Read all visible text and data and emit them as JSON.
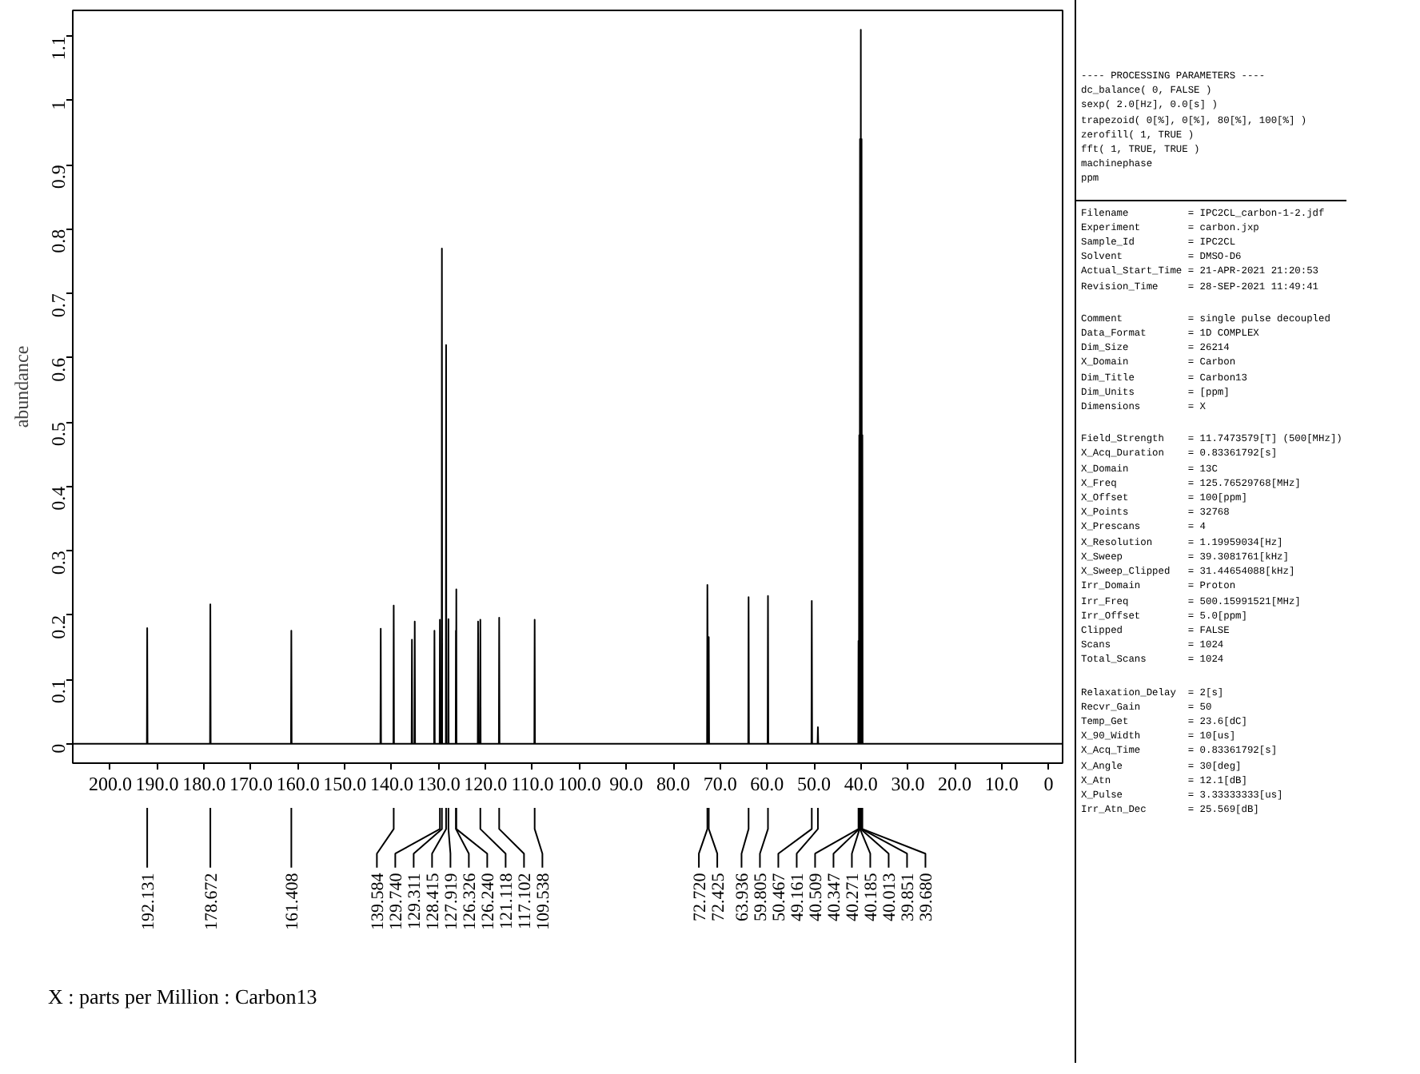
{
  "chart_data": {
    "type": "line",
    "ylabel": "abundance",
    "xlim": [
      208,
      -3
    ],
    "ylim": [
      -0.03,
      1.14
    ],
    "xticks": [
      {
        "value": 200,
        "label": "200.0"
      },
      {
        "value": 190,
        "label": "190.0"
      },
      {
        "value": 180,
        "label": "180.0"
      },
      {
        "value": 170,
        "label": "170.0"
      },
      {
        "value": 160,
        "label": "160.0"
      },
      {
        "value": 150,
        "label": "150.0"
      },
      {
        "value": 140,
        "label": "140.0"
      },
      {
        "value": 130,
        "label": "130.0"
      },
      {
        "value": 120,
        "label": "120.0"
      },
      {
        "value": 110,
        "label": "110.0"
      },
      {
        "value": 100,
        "label": "100.0"
      },
      {
        "value": 90,
        "label": "90.0"
      },
      {
        "value": 80,
        "label": "80.0"
      },
      {
        "value": 70,
        "label": "70.0"
      },
      {
        "value": 60,
        "label": "60.0"
      },
      {
        "value": 50,
        "label": "50.0"
      },
      {
        "value": 40,
        "label": "40.0"
      },
      {
        "value": 30,
        "label": "30.0"
      },
      {
        "value": 20,
        "label": "20.0"
      },
      {
        "value": 10,
        "label": "10.0"
      },
      0
    ],
    "yticks": [
      0,
      0.1,
      0.2,
      0.3,
      0.4,
      0.5,
      0.6,
      0.7,
      0.8,
      0.9,
      1.0,
      1.1
    ],
    "grid": false,
    "series": [
      {
        "color": "#000000",
        "x": [
          208,
          192.2,
          192.131,
          192.06,
          178.74,
          178.672,
          178.6,
          161.48,
          161.408,
          161.34,
          142.42,
          142.35,
          142.28,
          139.65,
          139.584,
          139.52,
          135.77,
          135.7,
          135.63,
          135.17,
          135.1,
          135.03,
          130.97,
          130.9,
          130.83,
          129.8,
          129.74,
          129.68,
          129.37,
          129.311,
          129.25,
          128.47,
          128.415,
          128.36,
          127.97,
          127.919,
          127.87,
          126.37,
          126.326,
          126.29,
          126.24,
          126.2,
          121.67,
          121.6,
          121.53,
          121.19,
          121.118,
          121.05,
          117.17,
          117.102,
          117.03,
          109.61,
          109.538,
          109.47,
          72.79,
          72.72,
          72.57,
          72.425,
          72.35,
          64.01,
          63.936,
          63.86,
          59.88,
          59.805,
          59.73,
          50.54,
          50.467,
          50.39,
          49.23,
          49.161,
          49.09,
          40.56,
          40.509,
          40.43,
          40.347,
          40.27,
          40.185,
          40.1,
          40.013,
          39.93,
          39.851,
          39.77,
          39.68,
          39.62,
          -3
        ],
        "values": [
          0,
          0,
          0.18,
          0,
          0,
          0.217,
          0,
          0,
          0.176,
          0,
          0,
          0.179,
          0,
          0,
          0.215,
          0,
          0,
          0.162,
          0,
          0,
          0.19,
          0,
          0,
          0.176,
          0,
          0,
          0.193,
          0,
          0,
          0.77,
          0,
          0,
          0.62,
          0,
          0,
          0.194,
          0,
          0,
          0.176,
          0,
          0.24,
          0,
          0,
          0.19,
          0,
          0,
          0.193,
          0,
          0,
          0.196,
          0,
          0,
          0.193,
          0,
          0,
          0.247,
          0,
          0.166,
          0,
          0,
          0.228,
          0,
          0,
          0.23,
          0,
          0,
          0.222,
          0,
          0,
          0.026,
          0,
          0,
          0.16,
          0,
          0.48,
          0,
          0.94,
          0,
          1.11,
          0,
          0.94,
          0,
          0.48,
          0,
          0
        ]
      }
    ],
    "annotations": [
      {
        "text": "192.131",
        "x": 192.131
      },
      {
        "text": "178.672",
        "x": 178.672
      },
      {
        "text": "161.408",
        "x": 161.408
      },
      {
        "text": "139.584",
        "x": 139.584
      },
      {
        "text": "129.740",
        "x": 129.74
      },
      {
        "text": "129.311",
        "x": 129.311
      },
      {
        "text": "128.415",
        "x": 128.415
      },
      {
        "text": "127.919",
        "x": 127.919
      },
      {
        "text": "126.326",
        "x": 126.326
      },
      {
        "text": "126.240",
        "x": 126.24
      },
      {
        "text": "121.118",
        "x": 121.118
      },
      {
        "text": "117.102",
        "x": 117.102
      },
      {
        "text": "109.538",
        "x": 109.538
      },
      {
        "text": "72.720",
        "x": 72.72
      },
      {
        "text": "72.425",
        "x": 72.425
      },
      {
        "text": "63.936",
        "x": 63.936
      },
      {
        "text": "59.805",
        "x": 59.805
      },
      {
        "text": "50.467",
        "x": 50.467
      },
      {
        "text": "49.161",
        "x": 49.161
      },
      {
        "text": "40.509",
        "x": 40.509
      },
      {
        "text": "40.347",
        "x": 40.347
      },
      {
        "text": "40.271",
        "x": 40.271
      },
      {
        "text": "40.185",
        "x": 40.185
      },
      {
        "text": "40.013",
        "x": 40.013
      },
      {
        "text": "39.851",
        "x": 39.851
      },
      {
        "text": "39.680",
        "x": 39.68
      },
      "X : parts per Million : Carbon13",
      "---- PROCESSING PARAMETERS ----\ndc_balance( 0, FALSE )\nsexp( 2.0[Hz], 0.0[s] )\ntrapezoid( 0[%], 0[%], 80[%], 100[%] )\nzerofill( 1, TRUE )\nfft( 1, TRUE, TRUE )\nmachinephase\nppm",
      "Filename          = IPC2CL_carbon-1-2.jdf\nExperiment        = carbon.jxp\nSample_Id         = IPC2CL\nSolvent           = DMSO-D6\nActual_Start_Time = 21-APR-2021 21:20:53\nRevision_Time     = 28-SEP-2021 11:49:41",
      "Comment           = single pulse decoupled\nData_Format       = 1D COMPLEX\nDim_Size          = 26214\nX_Domain          = Carbon\nDim_Title         = Carbon13\nDim_Units         = [ppm]\nDimensions        = X",
      "Field_Strength    = 11.7473579[T] (500[MHz])\nX_Acq_Duration    = 0.83361792[s]\nX_Domain          = 13C\nX_Freq            = 125.76529768[MHz]\nX_Offset          = 100[ppm]\nX_Points          = 32768\nX_Prescans        = 4\nX_Resolution      = 1.19959034[Hz]\nX_Sweep           = 39.3081761[kHz]\nX_Sweep_Clipped   = 31.44654088[kHz]\nIrr_Domain        = Proton\nIrr_Freq          = 500.15991521[MHz]\nIrr_Offset        = 5.0[ppm]\nClipped           = FALSE\nScans             = 1024\nTotal_Scans       = 1024",
      "Relaxation_Delay  = 2[s]\nRecvr_Gain        = 50\nTemp_Get          = 23.6[dC]\nX_90_Width        = 10[us]\nX_Acq_Time        = 0.83361792[s]\nX_Angle           = 30[deg]\nX_Atn             = 12.1[dB]\nX_Pulse           = 3.33333333[us]\nIrr_Atn_Dec       = 25.569[dB]"
    ]
  }
}
